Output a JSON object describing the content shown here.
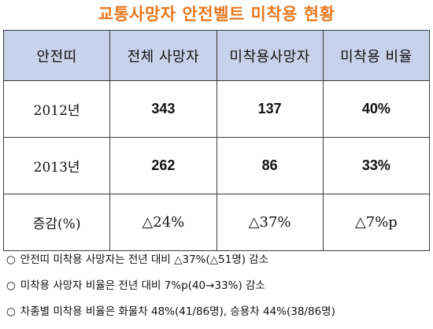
{
  "title": "교통사망자 안전벨트 미착용 현황",
  "table": {
    "headers": [
      "안전띠",
      "전체 사망자",
      "미착용사망자",
      "미착용 비율"
    ],
    "rows": [
      {
        "label": "2012년",
        "total": "343",
        "unbelted": "137",
        "ratio": "40%"
      },
      {
        "label": "2013년",
        "total": "262",
        "unbelted": "86",
        "ratio": "33%"
      },
      {
        "label": "증감(%)",
        "total": "△24%",
        "unbelted": "△37%",
        "ratio": "△7%p"
      }
    ]
  },
  "notes": [
    {
      "bullet": "○",
      "text": "안전띠 미착용 사망자는 전년 대비 △37%(△51명) 감소"
    },
    {
      "bullet": "○",
      "text": "미착용 사망자 비율은 전년 대비 7%p(40→33%) 감소"
    },
    {
      "bullet": "○",
      "text": "차종별 미착용 비율은 화물차 48%(41/86명), 승용차 44%(38/86명)"
    }
  ]
}
